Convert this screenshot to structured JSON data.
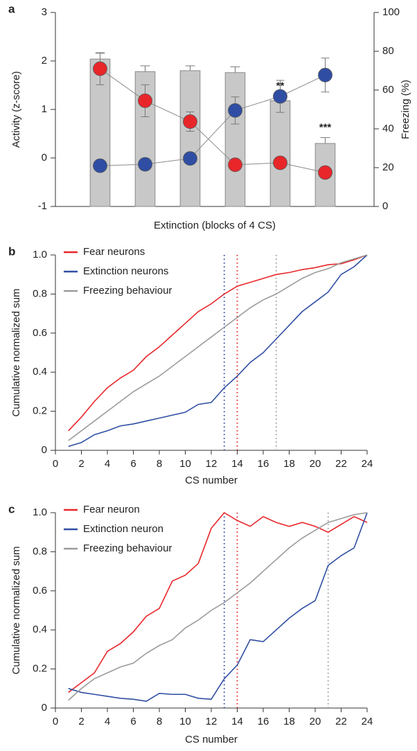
{
  "chart_data": [
    {
      "type": "bar",
      "panel_label": "a",
      "x_label": "Extinction (blocks of 4 CS)",
      "y_label": "Activity (z-score)",
      "y2_label": "Freezing (%)",
      "categories": [
        null,
        null,
        null,
        null,
        null,
        null
      ],
      "ylim": [
        -1,
        3
      ],
      "yticks": [
        -1,
        0,
        1,
        2,
        3
      ],
      "y2lim": [
        0,
        100
      ],
      "y2ticks": [
        0,
        20,
        40,
        60,
        80,
        100
      ],
      "series": [
        {
          "type": "bar",
          "axis": "y2",
          "color": "#c8c8c8",
          "values": [
            76,
            69.5,
            70,
            69,
            54.5,
            32.5
          ],
          "errors": [
            3,
            3,
            2.5,
            3,
            2.5,
            3
          ]
        },
        {
          "type": "line",
          "color": "#e8262a",
          "values": [
            1.84,
            1.18,
            0.75,
            -0.14,
            -0.1,
            -0.3
          ],
          "errors": [
            0.33,
            0.33,
            0.2,
            0.1,
            0.1,
            0.08
          ]
        },
        {
          "type": "line",
          "color": "#2f4ea3",
          "values": [
            -0.16,
            -0.13,
            -0.01,
            0.98,
            1.27,
            1.71
          ],
          "errors": [
            0.12,
            0.12,
            0.08,
            0.28,
            0.33,
            0.35
          ]
        }
      ],
      "annotations": [
        {
          "text": "**",
          "index": 4
        },
        {
          "text": "***",
          "index": 5
        }
      ]
    },
    {
      "type": "line",
      "panel_label": "b",
      "x_label": "CS number",
      "y_label": "Cumulative normalized sum",
      "x": [
        1,
        2,
        3,
        4,
        5,
        6,
        7,
        8,
        9,
        10,
        11,
        12,
        13,
        14,
        15,
        16,
        17,
        18,
        19,
        20,
        21,
        22,
        23,
        24
      ],
      "xlim": [
        0,
        24
      ],
      "xticks": [
        0,
        2,
        4,
        6,
        8,
        10,
        12,
        14,
        16,
        18,
        20,
        22,
        24
      ],
      "ylim": [
        0,
        1
      ],
      "yticks": [
        0,
        0.2,
        0.4,
        0.6,
        0.8,
        {
          "value": 1,
          "label": "1.0"
        }
      ],
      "legend": "top-left",
      "series": [
        {
          "name": "Fear neurons",
          "color": "#e8262a",
          "values": [
            0.1,
            0.17,
            0.25,
            0.32,
            0.37,
            0.41,
            0.48,
            0.53,
            0.59,
            0.65,
            0.71,
            0.75,
            0.8,
            0.84,
            0.86,
            0.88,
            0.9,
            0.91,
            0.925,
            0.935,
            0.95,
            0.955,
            0.975,
            1.0
          ]
        },
        {
          "name": "Extinction neurons",
          "color": "#2f4ea3",
          "values": [
            0.02,
            0.04,
            0.08,
            0.1,
            0.125,
            0.135,
            0.15,
            0.165,
            0.18,
            0.195,
            0.235,
            0.245,
            0.32,
            0.38,
            0.45,
            0.5,
            0.57,
            0.64,
            0.71,
            0.76,
            0.81,
            0.9,
            0.94,
            1.0
          ]
        },
        {
          "name": "Freezing behaviour",
          "color": "#9b9b9b",
          "values": [
            0.05,
            0.1,
            0.15,
            0.2,
            0.25,
            0.3,
            0.34,
            0.38,
            0.43,
            0.48,
            0.53,
            0.58,
            0.63,
            0.68,
            0.73,
            0.77,
            0.8,
            0.84,
            0.88,
            0.91,
            0.93,
            0.96,
            0.98,
            1.0
          ]
        }
      ],
      "vlines": [
        {
          "x": 13,
          "color": "#2f4ea3"
        },
        {
          "x": 14,
          "color": "#e8262a"
        },
        {
          "x": 17,
          "color": "#9b9b9b"
        }
      ]
    },
    {
      "type": "line",
      "panel_label": "c",
      "x_label": "CS number",
      "y_label": "Cumulative normalized sum",
      "x": [
        1,
        2,
        3,
        4,
        5,
        6,
        7,
        8,
        9,
        10,
        11,
        12,
        13,
        14,
        15,
        16,
        17,
        18,
        19,
        20,
        21,
        22,
        23,
        24
      ],
      "xlim": [
        0,
        24
      ],
      "xticks": [
        0,
        2,
        4,
        6,
        8,
        10,
        12,
        14,
        16,
        18,
        20,
        22,
        24
      ],
      "ylim": [
        0,
        1
      ],
      "yticks": [
        0,
        0.2,
        0.4,
        0.6,
        0.8,
        {
          "value": 1,
          "label": "1.0"
        }
      ],
      "legend": "top-left",
      "series": [
        {
          "name": "Fear neuron",
          "color": "#e8262a",
          "values": [
            0.08,
            0.13,
            0.18,
            0.29,
            0.33,
            0.39,
            0.47,
            0.51,
            0.65,
            0.68,
            0.74,
            0.92,
            1.0,
            0.96,
            0.93,
            0.98,
            0.95,
            0.93,
            0.95,
            0.93,
            0.9,
            0.94,
            0.98,
            0.95
          ]
        },
        {
          "name": "Extinction neuron",
          "color": "#2f4ea3",
          "values": [
            0.1,
            0.08,
            0.07,
            0.06,
            0.05,
            0.045,
            0.035,
            0.075,
            0.07,
            0.07,
            0.05,
            0.045,
            0.15,
            0.22,
            0.35,
            0.34,
            0.4,
            0.46,
            0.51,
            0.55,
            0.73,
            0.78,
            0.82,
            1.0
          ]
        },
        {
          "name": "Freezing behaviour",
          "color": "#9b9b9b",
          "values": [
            0.04,
            0.1,
            0.15,
            0.18,
            0.21,
            0.23,
            0.28,
            0.32,
            0.35,
            0.41,
            0.45,
            0.5,
            0.54,
            0.59,
            0.64,
            0.7,
            0.76,
            0.82,
            0.87,
            0.91,
            0.95,
            0.97,
            0.99,
            1.0
          ]
        }
      ],
      "vlines": [
        {
          "x": 13,
          "color": "#2f4ea3"
        },
        {
          "x": 14,
          "color": "#e8262a"
        },
        {
          "x": 21,
          "color": "#9b9b9b"
        }
      ]
    }
  ]
}
